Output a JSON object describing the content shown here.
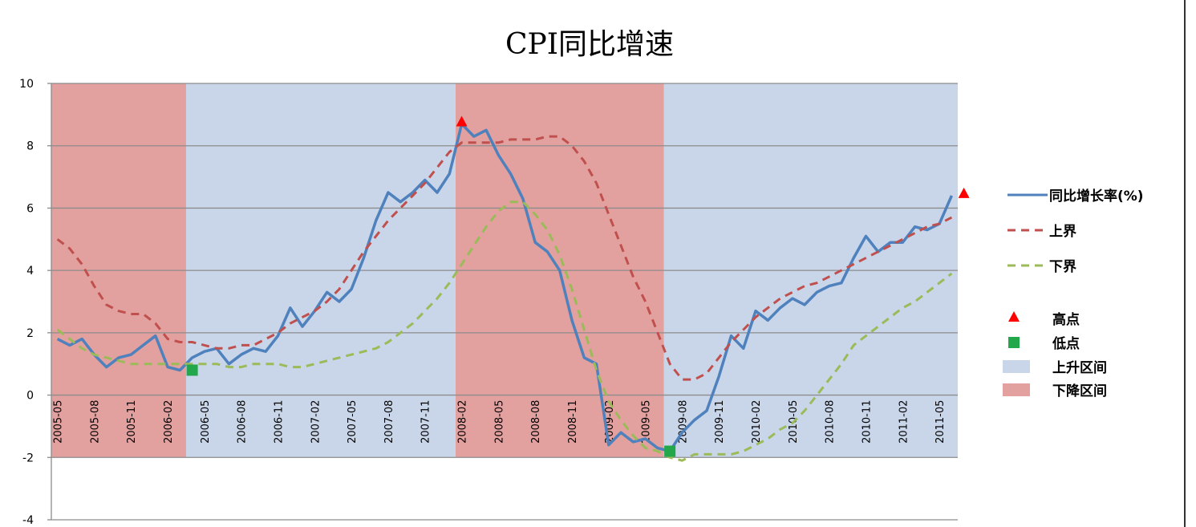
{
  "chart_data": {
    "type": "line",
    "title": "CPI同比增速",
    "ylim": [
      -4,
      10
    ],
    "yticks": [
      -4,
      -2,
      0,
      2,
      4,
      6,
      8,
      10
    ],
    "x_tick_labels": [
      "2005-05",
      "2005-08",
      "2005-11",
      "2006-02",
      "2006-05",
      "2006-08",
      "2006-11",
      "2007-02",
      "2007-05",
      "2007-08",
      "2007-11",
      "2008-02",
      "2008-05",
      "2008-08",
      "2008-11",
      "2009-02",
      "2009-05",
      "2009-08",
      "2009-11",
      "2010-02",
      "2010-05",
      "2010-08",
      "2010-11",
      "2011-02",
      "2011-05"
    ],
    "x_start": "2005-05",
    "grid": true,
    "legend_position": "right",
    "series": [
      {
        "name": "同比增长率(%)",
        "style": "solid",
        "color": "#4F81BD",
        "values": [
          1.8,
          1.6,
          1.8,
          1.3,
          0.9,
          1.2,
          1.3,
          1.6,
          1.9,
          0.9,
          0.8,
          1.2,
          1.4,
          1.5,
          1.0,
          1.3,
          1.5,
          1.4,
          1.9,
          2.8,
          2.2,
          2.7,
          3.3,
          3.0,
          3.4,
          4.4,
          5.6,
          6.5,
          6.2,
          6.5,
          6.9,
          6.5,
          7.1,
          8.7,
          8.3,
          8.5,
          7.7,
          7.1,
          6.3,
          4.9,
          4.6,
          4.0,
          2.4,
          1.2,
          1.0,
          -1.6,
          -1.2,
          -1.5,
          -1.4,
          -1.7,
          -1.8,
          -1.2,
          -0.8,
          -0.5,
          0.6,
          1.9,
          1.5,
          2.7,
          2.4,
          2.8,
          3.1,
          2.9,
          3.3,
          3.5,
          3.6,
          4.4,
          5.1,
          4.6,
          4.9,
          4.9,
          5.4,
          5.3,
          5.5,
          6.4
        ]
      },
      {
        "name": "上界",
        "style": "dashed",
        "color": "#C0504D",
        "values": [
          5.0,
          4.7,
          4.2,
          3.5,
          2.9,
          2.7,
          2.6,
          2.6,
          2.3,
          1.8,
          1.7,
          1.7,
          1.6,
          1.5,
          1.5,
          1.6,
          1.6,
          1.8,
          2.0,
          2.3,
          2.5,
          2.7,
          3.0,
          3.4,
          4.0,
          4.6,
          5.1,
          5.6,
          6.0,
          6.4,
          6.8,
          7.3,
          7.8,
          8.1,
          8.1,
          8.1,
          8.1,
          8.2,
          8.2,
          8.2,
          8.3,
          8.3,
          8.0,
          7.5,
          6.8,
          5.8,
          4.8,
          3.8,
          3.0,
          2.0,
          1.0,
          0.5,
          0.5,
          0.7,
          1.2,
          1.7,
          2.1,
          2.5,
          2.8,
          3.1,
          3.3,
          3.5,
          3.6,
          3.8,
          4.0,
          4.2,
          4.4,
          4.6,
          4.8,
          5.0,
          5.2,
          5.4,
          5.5,
          5.7
        ]
      },
      {
        "name": "下界",
        "style": "dashed",
        "color": "#9BBB59",
        "values": [
          2.1,
          1.8,
          1.5,
          1.3,
          1.2,
          1.1,
          1.0,
          1.0,
          1.0,
          1.0,
          1.0,
          1.0,
          1.0,
          1.0,
          0.9,
          0.9,
          1.0,
          1.0,
          1.0,
          0.9,
          0.9,
          1.0,
          1.1,
          1.2,
          1.3,
          1.4,
          1.5,
          1.7,
          2.0,
          2.3,
          2.7,
          3.1,
          3.6,
          4.2,
          4.8,
          5.4,
          5.9,
          6.2,
          6.2,
          5.8,
          5.3,
          4.5,
          3.4,
          2.1,
          0.8,
          -0.2,
          -0.8,
          -1.3,
          -1.7,
          -1.8,
          -2.0,
          -2.1,
          -1.9,
          -1.9,
          -1.9,
          -1.9,
          -1.8,
          -1.6,
          -1.4,
          -1.1,
          -0.9,
          -0.5,
          0.0,
          0.5,
          1.0,
          1.6,
          1.9,
          2.2,
          2.5,
          2.8,
          3.0,
          3.3,
          3.6,
          3.9
        ]
      }
    ],
    "high_points": {
      "name": "高点",
      "color": "#FF0000",
      "points": [
        {
          "x": "2008-02",
          "y": 8.7
        },
        {
          "x": "2011-07",
          "y": 6.4
        }
      ]
    },
    "low_points": {
      "name": "低点",
      "color": "#22A84A",
      "points": [
        {
          "x": "2006-04",
          "y": 0.8
        },
        {
          "x": "2009-07",
          "y": -1.8
        }
      ]
    },
    "regions": [
      {
        "type": "down",
        "from": "2005-05",
        "to": "2006-04"
      },
      {
        "type": "up",
        "from": "2006-04",
        "to": "2008-02"
      },
      {
        "type": "down",
        "from": "2008-02",
        "to": "2009-07"
      },
      {
        "type": "up",
        "from": "2009-07",
        "to": "2011-07"
      }
    ],
    "region_legend": {
      "up": {
        "name": "上升区间",
        "color": "#C9D6EA"
      },
      "down": {
        "name": "下降区间",
        "color": "#E2A09F"
      }
    },
    "band_ylim": [
      -2,
      10
    ]
  }
}
